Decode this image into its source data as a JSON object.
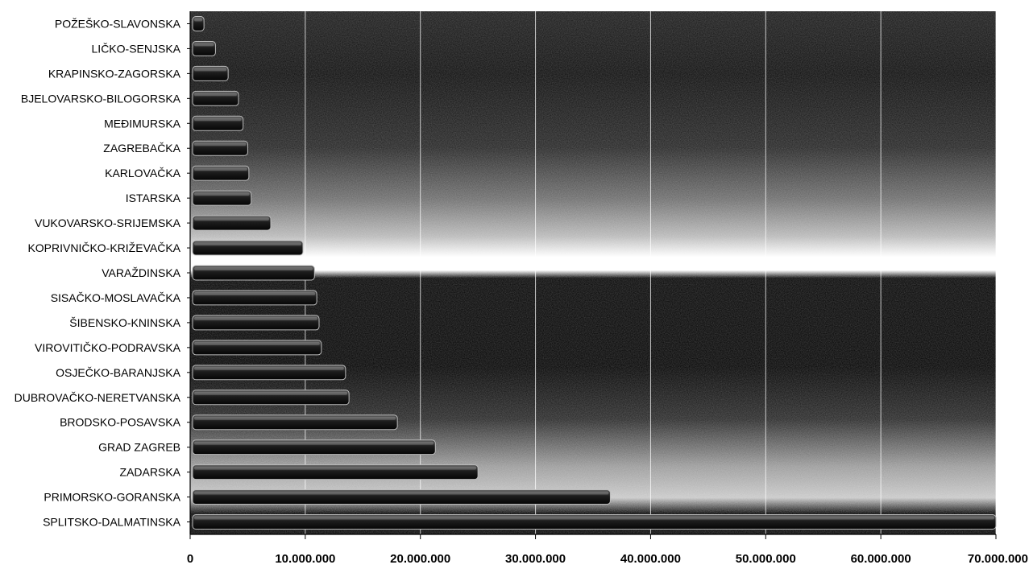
{
  "chart_data": {
    "type": "bar",
    "orientation": "horizontal",
    "categories": [
      "POŽEŠKO-SLAVONSKA",
      "LIČKO-SENJSKA",
      "KRAPINSKO-ZAGORSKA",
      "BJELOVARSKO-BILOGORSKA",
      "MEĐIMURSKA",
      "ZAGREBAČKA",
      "KARLOVAČKA",
      "ISTARSKA",
      "VUKOVARSKO-SRIJEMSKA",
      "KOPRIVNIČKO-KRIŽEVAČKA",
      "VARAŽDINSKA",
      "SISAČKO-MOSLAVAČKA",
      "ŠIBENSKO-KNINSKA",
      "VIROVITIČKO-PODRAVSKA",
      "OSJEČKO-BARANJSKA",
      "DUBROVAČKO-NERETVANSKA",
      "BRODSKO-POSAVSKA",
      "GRAD ZAGREB",
      "ZADARSKA",
      "PRIMORSKO-GORANSKA",
      "SPLITSKO-DALMATINSKA"
    ],
    "values": [
      1200000,
      2200000,
      3300000,
      4200000,
      4600000,
      5000000,
      5100000,
      5300000,
      7000000,
      9800000,
      10800000,
      11000000,
      11200000,
      11400000,
      13500000,
      13800000,
      18000000,
      21300000,
      25000000,
      36500000,
      70500000
    ],
    "xlim": [
      0,
      70000000
    ],
    "xticks": [
      0,
      10000000,
      20000000,
      30000000,
      40000000,
      50000000,
      60000000,
      70000000
    ],
    "xtick_labels": [
      "0",
      "10.000.000",
      "20.000.000",
      "30.000.000",
      "40.000.000",
      "50.000.000",
      "60.000.000",
      "70.000.000"
    ],
    "grid": true,
    "title": "",
    "xlabel": "",
    "ylabel": "",
    "colors": {
      "background": "#ffffff",
      "plot_dark": "#0a0a0a",
      "plot_mid": "#6a6a6a",
      "bar_fill": "#222222",
      "bar_stroke": "#bbbbbb",
      "gridline": "#ffffff",
      "axis": "#000000"
    }
  }
}
